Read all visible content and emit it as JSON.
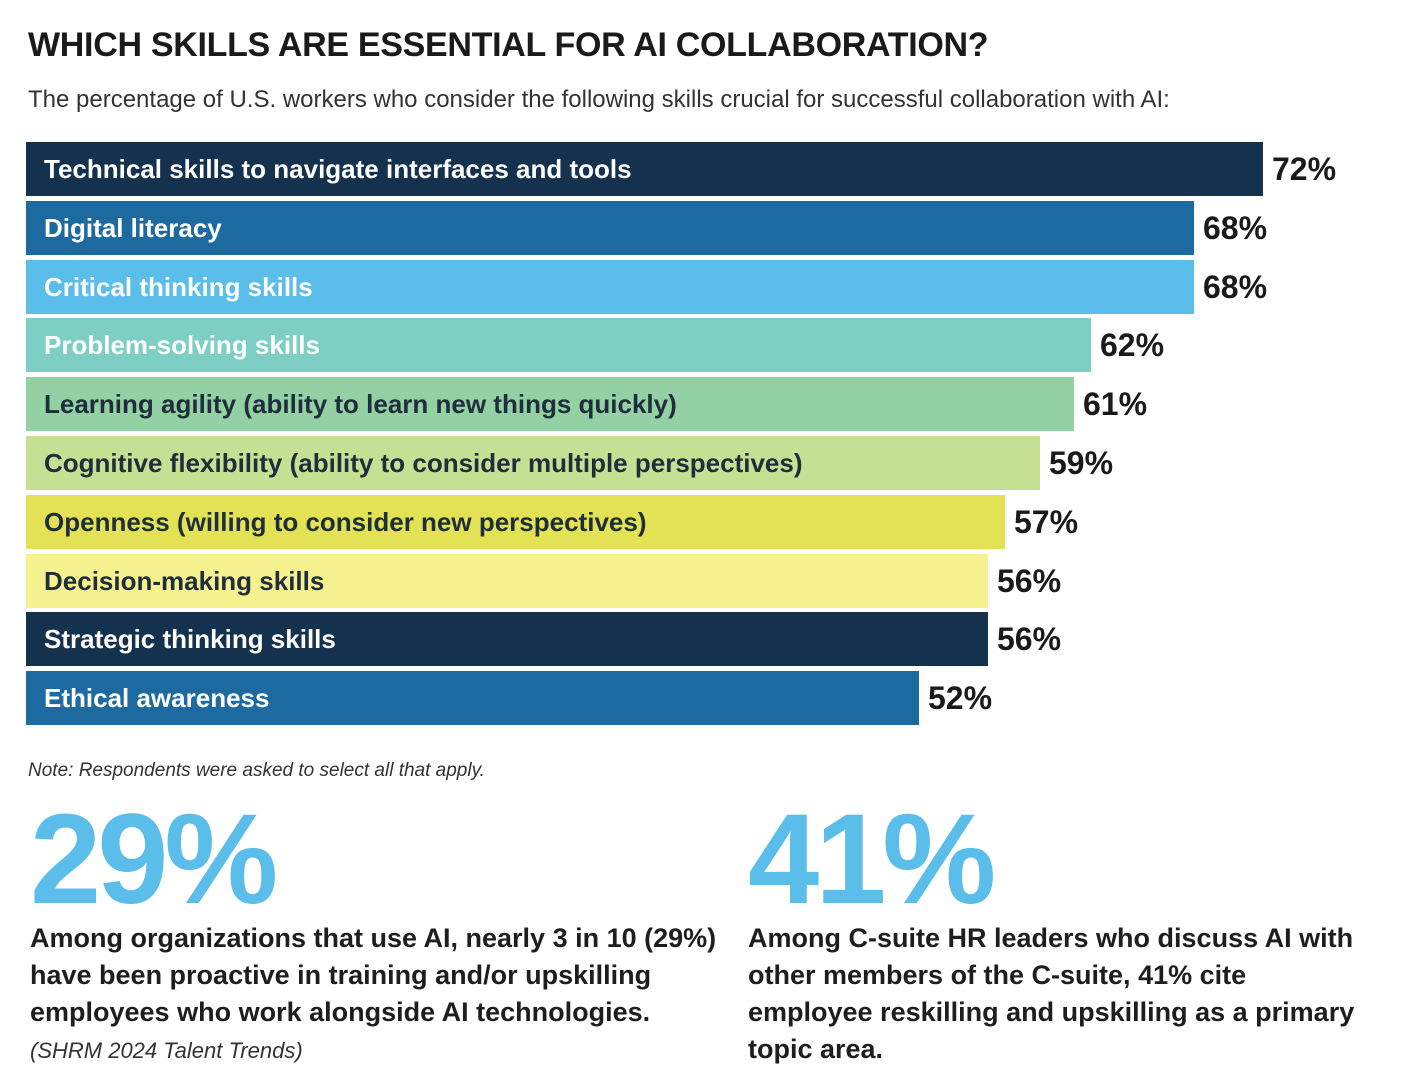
{
  "title": "WHICH SKILLS ARE ESSENTIAL FOR AI COLLABORATION?",
  "subtitle": "The percentage of U.S. workers who consider the following skills crucial for successful collaboration with AI:",
  "chart_data": {
    "type": "bar",
    "orientation": "horizontal",
    "title": "WHICH SKILLS ARE ESSENTIAL FOR AI COLLABORATION?",
    "xlabel": "",
    "ylabel": "",
    "xlim": [
      0,
      72
    ],
    "categories": [
      "Technical skills to navigate interfaces and tools",
      "Digital literacy",
      "Critical thinking skills",
      "Problem-solving skills",
      "Learning agility (ability to learn new things quickly)",
      "Cognitive flexibility (ability to consider multiple perspectives)",
      "Openness (willing to consider new perspectives)",
      "Decision-making skills",
      "Strategic thinking skills",
      "Ethical awareness"
    ],
    "values": [
      72,
      68,
      68,
      62,
      61,
      59,
      57,
      56,
      56,
      52
    ],
    "value_labels": [
      "72%",
      "68%",
      "68%",
      "62%",
      "61%",
      "59%",
      "57%",
      "56%",
      "56%",
      "52%"
    ],
    "bar_colors": [
      "#14314e",
      "#1d6aa0",
      "#5bbde9",
      "#7dcec3",
      "#93d0a3",
      "#c6e093",
      "#e2e254",
      "#f6f18f",
      "#14314e",
      "#1d6aa0"
    ],
    "label_colors": [
      "#ffffff",
      "#ffffff",
      "#ffffff",
      "#ffffff",
      "#1e2e3a",
      "#1e2e3a",
      "#1e2e3a",
      "#1e2e3a",
      "#ffffff",
      "#ffffff"
    ]
  },
  "note": "Note: Respondents were asked to select all that apply.",
  "stats": [
    {
      "value": "29%",
      "text": "Among organizations that use AI, nearly 3 in 10 (29%) have been proactive in training and/or upskilling employees who work alongside AI technologies.",
      "source": "(SHRM 2024 Talent Trends)"
    },
    {
      "value": "41%",
      "text": "Among C-suite HR leaders who discuss AI with other members of the C-suite, 41% cite employee reskilling and upskilling as a primary topic area.",
      "source": ""
    }
  ],
  "colors": {
    "accent": "#5bbde9",
    "text": "#1e1e1e"
  }
}
